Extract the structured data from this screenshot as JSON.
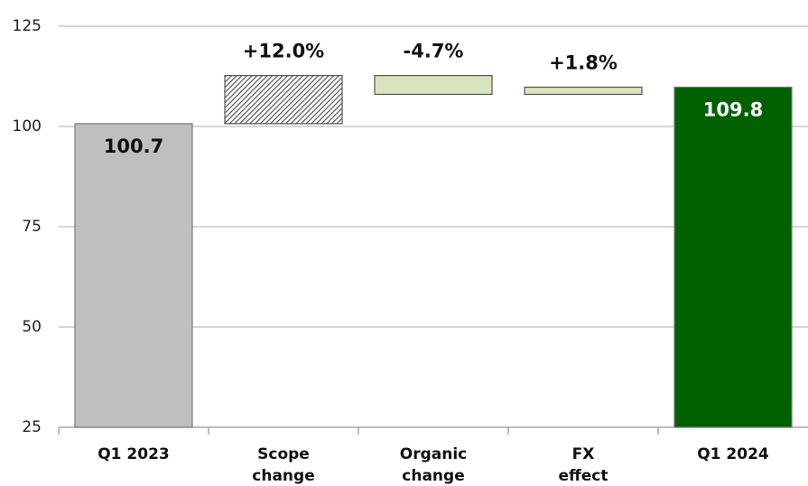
{
  "chart_data": {
    "type": "waterfall",
    "categories": [
      [
        "Q1 2023"
      ],
      [
        "Scope",
        "change"
      ],
      [
        "Organic",
        "change"
      ],
      [
        "FX",
        "effect"
      ],
      [
        "Q1 2024"
      ]
    ],
    "values": [
      100.7,
      12.0,
      -4.7,
      1.8,
      109.8
    ],
    "value_labels": [
      "100.7",
      "+12.0%",
      "-4.7%",
      "+1.8%",
      "109.8"
    ],
    "measure": [
      "absolute",
      "relative",
      "relative",
      "relative",
      "total"
    ],
    "colors": [
      "#bfbfbf",
      "#ffffff",
      "#d8e4bc",
      "#d8e4bc",
      "#006100"
    ],
    "hatched": [
      false,
      true,
      false,
      false,
      false
    ],
    "ylim": [
      25,
      125
    ],
    "yticks": [
      25,
      50,
      75,
      100,
      125
    ],
    "grid": true
  }
}
